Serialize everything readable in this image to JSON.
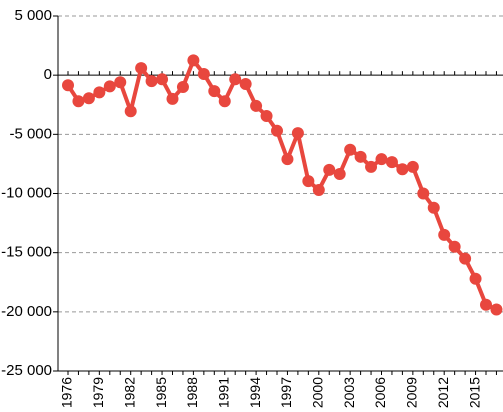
{
  "chart_data": {
    "type": "line",
    "categories": [
      "1976",
      null,
      null,
      "1979",
      null,
      null,
      "1982",
      null,
      null,
      "1985",
      null,
      null,
      "1988",
      null,
      null,
      "1991",
      null,
      null,
      "1994",
      null,
      null,
      "1997",
      null,
      null,
      "2000",
      null,
      null,
      "2003",
      null,
      null,
      "2006",
      null,
      null,
      "2009",
      null,
      null,
      "2012",
      null,
      null,
      "2015",
      null,
      null
    ],
    "series": [
      {
        "color": "#e8473e",
        "values": [
          -850,
          -2200,
          -1950,
          -1450,
          -950,
          -600,
          -3050,
          600,
          -500,
          -350,
          -2000,
          -1000,
          1250,
          100,
          -1350,
          -2200,
          -350,
          -750,
          -2600,
          -3450,
          -4700,
          -7100,
          -4900,
          -8950,
          -9700,
          -8000,
          -8350,
          -6300,
          -6900,
          -7750,
          -7100,
          -7350,
          -7950,
          -7750,
          -10000,
          -11200,
          -13500,
          -14500,
          -15500,
          -17200,
          -19400,
          -19800
        ]
      }
    ],
    "ylim": [
      -25000,
      5000
    ],
    "yticks": [
      {
        "value": -25000,
        "label": "-25 000"
      },
      {
        "value": -20000,
        "label": "-20 000"
      },
      {
        "value": -15000,
        "label": "-15 000"
      },
      {
        "value": -10000,
        "label": "-10 000"
      },
      {
        "value": -5000,
        "label": "-5 000"
      },
      0,
      {
        "value": 5000,
        "label": "5 000"
      }
    ],
    "grid": true
  }
}
